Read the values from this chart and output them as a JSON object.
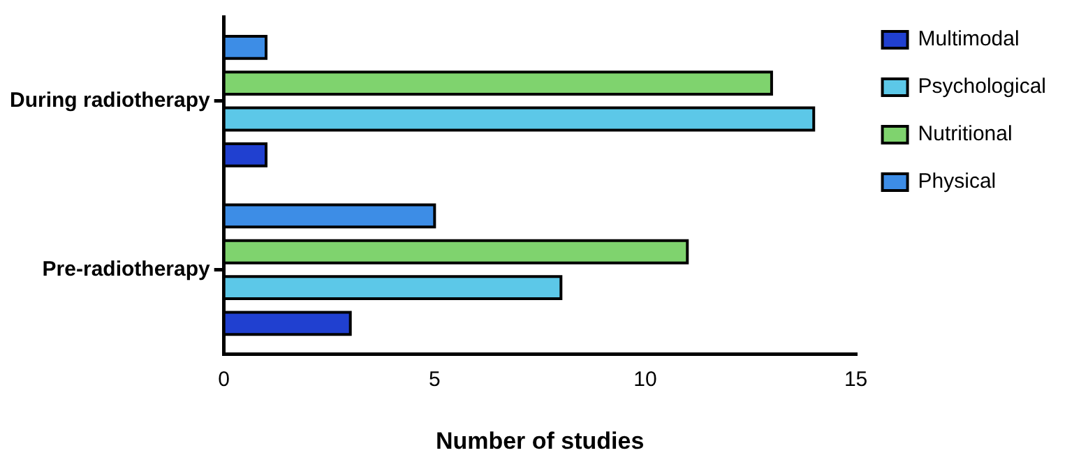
{
  "chart_data": {
    "type": "bar",
    "orientation": "horizontal",
    "xlabel": "Number of studies",
    "categories": [
      "During radiotherapy",
      "Pre-radiotherapy"
    ],
    "series": [
      {
        "name": "Physical",
        "color": "#3d8de6",
        "values": [
          1,
          5
        ]
      },
      {
        "name": "Nutritional",
        "color": "#7fd36e",
        "values": [
          13,
          11
        ]
      },
      {
        "name": "Psychological",
        "color": "#5cc8e8",
        "values": [
          14,
          8
        ]
      },
      {
        "name": "Multimodal",
        "color": "#2040d0",
        "values": [
          1,
          3
        ]
      }
    ],
    "xlim": [
      0,
      15
    ],
    "xticks": [
      0,
      5,
      10,
      15
    ],
    "grid": false,
    "legend": "top right"
  }
}
